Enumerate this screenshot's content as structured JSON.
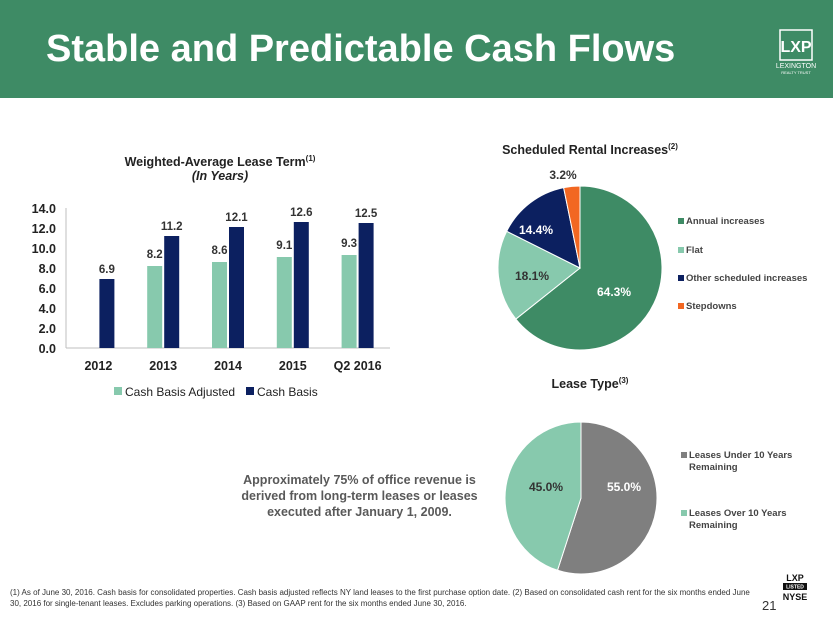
{
  "header": {
    "title": "Stable and Predictable Cash Flows",
    "bg_color": "#3e8b65"
  },
  "logo": {
    "text_top": "LXP",
    "text_name": "LEXINGTON",
    "text_sub": "REALTY TRUST"
  },
  "chart_data": [
    {
      "type": "bar",
      "title": "Weighted-Average Lease Term",
      "title_sup": "(1)",
      "subtitle": "(In Years)",
      "categories": [
        "2012",
        "2013",
        "2014",
        "2015",
        "Q2 2016"
      ],
      "series": [
        {
          "name": "Cash Basis Adjusted",
          "color": "#87c9ad",
          "values": [
            null,
            8.2,
            8.6,
            9.1,
            9.3
          ]
        },
        {
          "name": "Cash Basis",
          "color": "#0c2060",
          "values": [
            6.9,
            11.2,
            12.1,
            12.6,
            12.5
          ]
        }
      ],
      "ylim": [
        0,
        14
      ],
      "yticks": [
        "0.0",
        "2.0",
        "4.0",
        "6.0",
        "8.0",
        "10.0",
        "12.0",
        "14.0"
      ],
      "legend": "bottom",
      "grid": false
    },
    {
      "type": "pie",
      "title": "Scheduled Rental Increases",
      "title_sup": "(2)",
      "slices": [
        {
          "label": "Annual increases",
          "value": 64.3,
          "display": "64.3%",
          "color": "#3e8b65"
        },
        {
          "label": "Flat",
          "value": 18.1,
          "display": "18.1%",
          "color": "#87c9ad"
        },
        {
          "label": "Other scheduled increases",
          "value": 14.4,
          "display": "14.4%",
          "color": "#0c2060"
        },
        {
          "label": "Stepdowns",
          "value": 3.2,
          "display": "3.2%",
          "color": "#f26722"
        }
      ],
      "legend": "right"
    },
    {
      "type": "pie",
      "title": "Lease Type",
      "title_sup": "(3)",
      "slices": [
        {
          "label": "Leases Under 10 Years Remaining",
          "label_lines": [
            "Leases Under 10 Years",
            "Remaining"
          ],
          "value": 55.0,
          "display": "55.0%",
          "color": "#7f7f7f"
        },
        {
          "label": "Leases Over 10 Years Remaining",
          "label_lines": [
            "Leases Over 10 Years",
            "Remaining"
          ],
          "value": 45.0,
          "display": "45.0%",
          "color": "#87c9ad"
        }
      ],
      "legend": "right"
    }
  ],
  "note": "Approximately 75% of office revenue is derived from long-term leases or leases executed after January 1, 2009.",
  "footnote": "(1) As of June 30, 2016. Cash basis for consolidated properties. Cash basis adjusted reflects NY land leases to the first purchase option date. (2) Based on consolidated cash rent for the six months ended June 30, 2016 for single-tenant leases. Excludes parking operations. (3) Based on GAAP rent for the six months ended June 30, 2016.",
  "page_number": "21",
  "nyse_logo": {
    "top": "LXP",
    "middle": "LISTED",
    "bottom": "NYSE"
  }
}
